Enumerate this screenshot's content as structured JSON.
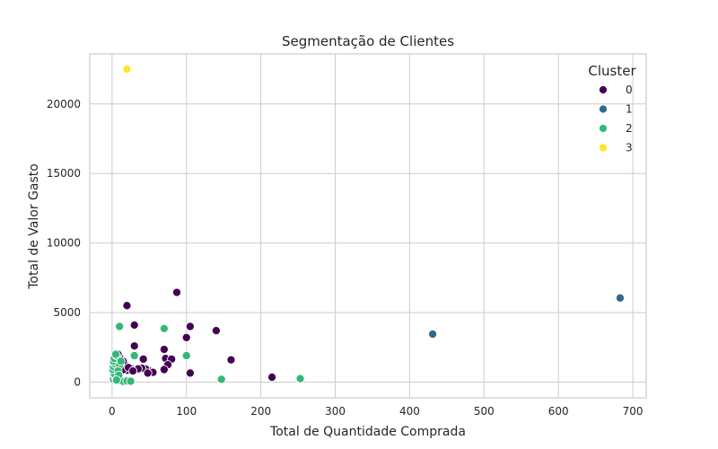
{
  "chart_data": {
    "type": "scatter",
    "title": "Segmentação de Clientes",
    "xlabel": "Total de Quantidade Comprada",
    "ylabel": "Total de Valor Gasto",
    "xlim": [
      -30,
      718
    ],
    "ylim": [
      -1130,
      23600
    ],
    "xticks": [
      0,
      100,
      200,
      300,
      400,
      500,
      600,
      700
    ],
    "yticks": [
      0,
      5000,
      10000,
      15000,
      20000
    ],
    "grid": true,
    "legend": {
      "title": "Cluster",
      "placement": "top-right",
      "entries": [
        {
          "label": "0",
          "color": "#440154"
        },
        {
          "label": "1",
          "color": "#31688e"
        },
        {
          "label": "2",
          "color": "#35b779"
        },
        {
          "label": "3",
          "color": "#fde725"
        }
      ]
    },
    "series": [
      {
        "cluster": "0",
        "color": "#440154",
        "points": [
          [
            87,
            6450
          ],
          [
            20,
            5500
          ],
          [
            30,
            4100
          ],
          [
            105,
            4000
          ],
          [
            140,
            3700
          ],
          [
            100,
            3200
          ],
          [
            30,
            2600
          ],
          [
            70,
            2350
          ],
          [
            160,
            1600
          ],
          [
            42,
            1650
          ],
          [
            72,
            1700
          ],
          [
            80,
            1650
          ],
          [
            75,
            1250
          ],
          [
            70,
            900
          ],
          [
            105,
            650
          ],
          [
            215,
            350
          ],
          [
            50,
            800
          ],
          [
            45,
            950
          ],
          [
            40,
            1000
          ],
          [
            30,
            900
          ],
          [
            25,
            1000
          ],
          [
            18,
            1200
          ],
          [
            15,
            1500
          ],
          [
            10,
            1800
          ],
          [
            8,
            2000
          ],
          [
            12,
            1100
          ],
          [
            20,
            850
          ],
          [
            35,
            950
          ],
          [
            55,
            700
          ],
          [
            5,
            900
          ],
          [
            10,
            700
          ],
          [
            15,
            900
          ],
          [
            22,
            1050
          ],
          [
            28,
            800
          ],
          [
            48,
            650
          ]
        ]
      },
      {
        "cluster": "1",
        "color": "#31688e",
        "points": [
          [
            683,
            6050
          ],
          [
            431,
            3450
          ]
        ]
      },
      {
        "cluster": "2",
        "color": "#35b779",
        "points": [
          [
            10,
            4000
          ],
          [
            70,
            3850
          ],
          [
            30,
            1900
          ],
          [
            100,
            1900
          ],
          [
            147,
            200
          ],
          [
            253,
            250
          ],
          [
            8,
            100
          ],
          [
            15,
            50
          ],
          [
            20,
            80
          ],
          [
            25,
            60
          ],
          [
            2,
            200
          ],
          [
            5,
            300
          ],
          [
            3,
            600
          ],
          [
            1,
            900
          ],
          [
            2,
            1100
          ],
          [
            4,
            1300
          ],
          [
            2,
            1500
          ],
          [
            3,
            1700
          ],
          [
            6,
            1900
          ],
          [
            5,
            2000
          ],
          [
            10,
            1200
          ],
          [
            12,
            1500
          ],
          [
            8,
            800
          ],
          [
            9,
            500
          ],
          [
            6,
            150
          ]
        ]
      },
      {
        "cluster": "3",
        "color": "#fde725",
        "points": [
          [
            20,
            22500
          ]
        ]
      }
    ]
  }
}
